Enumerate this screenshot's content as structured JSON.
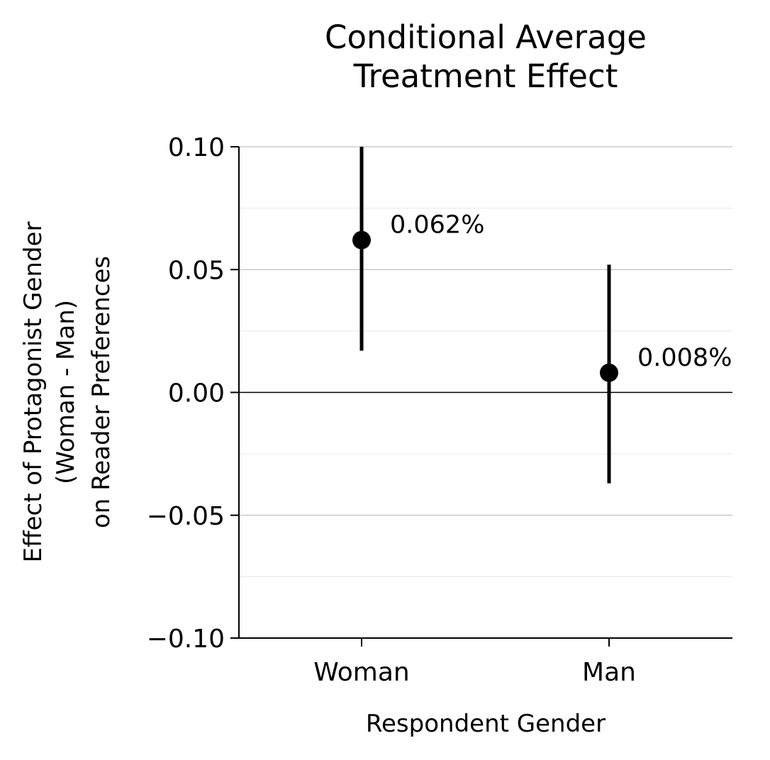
{
  "chart_data": {
    "type": "errorbar",
    "title_lines": [
      "Conditional Average",
      "Treatment Effect"
    ],
    "xlabel": "Respondent Gender",
    "ylabel_lines": [
      "Effect of Protagonist Gender",
      "(Woman - Man)",
      "on Reader Preferences"
    ],
    "categories": [
      "Woman",
      "Man"
    ],
    "points": [
      {
        "category": "Woman",
        "value": 0.062,
        "ci_low": 0.017,
        "ci_high": 0.1,
        "label": "0.062%"
      },
      {
        "category": "Man",
        "value": 0.008,
        "ci_low": -0.037,
        "ci_high": 0.052,
        "label": "0.008%"
      }
    ],
    "ylim": [
      -0.1,
      0.1
    ],
    "yticks": [
      {
        "value": 0.1,
        "label": "0.10"
      },
      {
        "value": 0.05,
        "label": "0.05"
      },
      {
        "value": 0.0,
        "label": "0.00"
      },
      {
        "value": -0.05,
        "label": "−0.05"
      },
      {
        "value": -0.1,
        "label": "−0.10"
      }
    ],
    "minor_gridlines": [
      0.075,
      0.025,
      -0.025,
      -0.075
    ],
    "zero_line": true,
    "grid": true,
    "colors": {
      "marker": "#000000",
      "grid_major": "#b0b0b0",
      "grid_minor": "#e6e6e6"
    }
  }
}
